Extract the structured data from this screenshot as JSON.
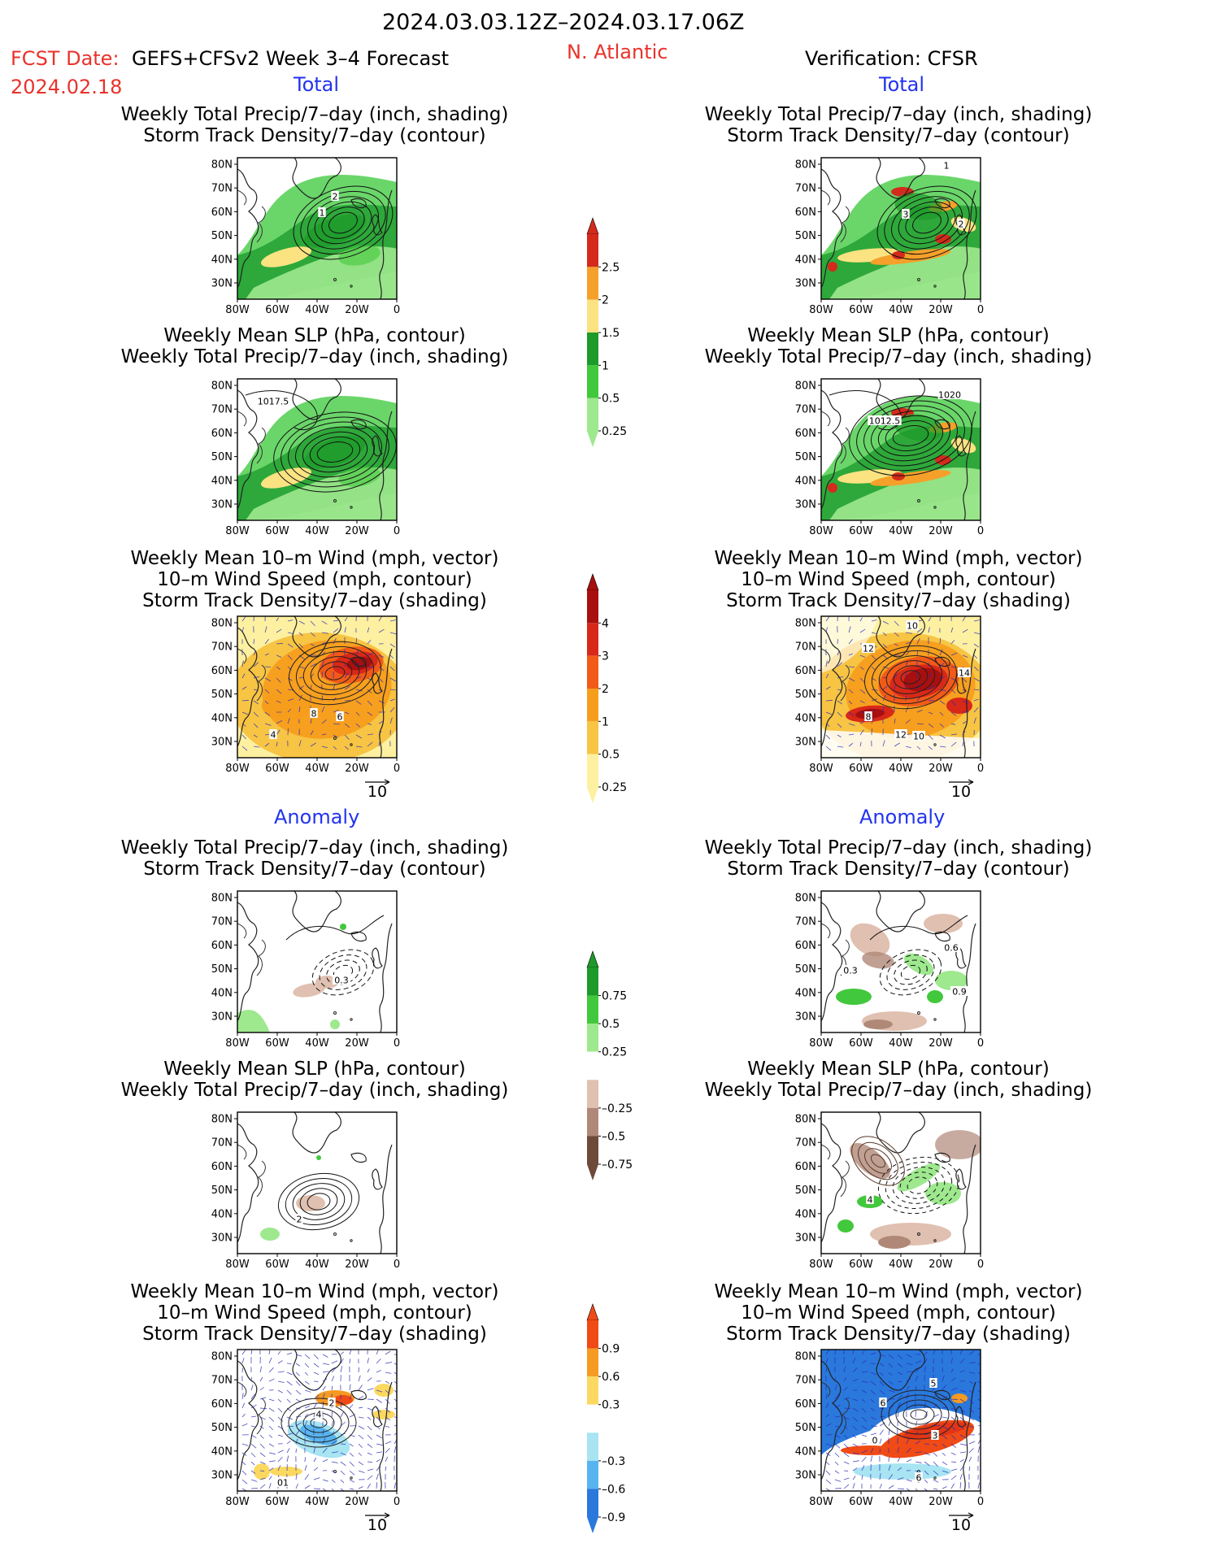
{
  "header": {
    "period": "2024.03.03.12Z–2024.03.17.06Z",
    "fcst_label": "FCST Date:",
    "fcst_model": "GEFS+CFSv2 Week 3–4 Forecast",
    "fcst_date": "2024.02.18",
    "region": "N. Atlantic",
    "verification": "Verification: CFSR"
  },
  "sections": {
    "total": "Total",
    "anomaly": "Anomaly"
  },
  "titles": {
    "precip_track": [
      "Weekly Total Precip/7–day (inch, shading)",
      "Storm Track Density/7–day (contour)"
    ],
    "slp_precip": [
      "Weekly Mean SLP (hPa, contour)",
      "Weekly Total Precip/7–day (inch, shading)"
    ],
    "wind_track": [
      "Weekly Mean 10–m Wind (mph, vector)",
      "10–m Wind Speed (mph, contour)",
      "Storm Track Density/7–day (shading)"
    ]
  },
  "axes": {
    "lat_ticks": [
      "80N",
      "70N",
      "60N",
      "50N",
      "40N",
      "30N"
    ],
    "lon_ticks": [
      "80W",
      "60W",
      "40W",
      "20W",
      "0"
    ]
  },
  "vector_reference": "10",
  "colorbars": [
    {
      "id": "precip-total",
      "labels": [
        "2.5",
        "2",
        "1.5",
        "1",
        "0.5",
        "0.25"
      ],
      "colors": [
        "#d42a1c",
        "#f5a02a",
        "#fbe382",
        "#1d9a2a",
        "#42c83c",
        "#9ee88e"
      ]
    },
    {
      "id": "storm-total",
      "labels": [
        "4",
        "3",
        "2",
        "1",
        "0.5",
        "0.25"
      ],
      "colors": [
        "#a80f0f",
        "#d82818",
        "#f25a18",
        "#f79d1c",
        "#f7c444",
        "#fdf0a0"
      ]
    },
    {
      "id": "precip-anom",
      "labels": [
        "0.75",
        "0.5",
        "0.25",
        "–0.25",
        "–0.5",
        "–0.75"
      ],
      "colors": [
        "#1d9a2a",
        "#42c83c",
        "#9ee88e",
        "#ffffff",
        "#e0c0b0",
        "#b08878",
        "#6e4a38"
      ]
    },
    {
      "id": "storm-anom",
      "labels": [
        "0.9",
        "0.6",
        "0.3",
        "–0.3",
        "–0.6",
        "–0.9"
      ],
      "colors": [
        "#f04a16",
        "#f59a22",
        "#fbd860",
        "#ffffff",
        "#a8e4f2",
        "#58b4ee",
        "#2a78dc"
      ]
    }
  ],
  "panel_labels": {
    "f1": [
      "2",
      "1"
    ],
    "v1": [
      "1",
      "3",
      "2"
    ],
    "f2": [
      "1017.5"
    ],
    "v2": [
      "1012.5",
      "1020"
    ],
    "f3": [
      "8",
      "6",
      "4"
    ],
    "v3": [
      "10",
      "12",
      "14",
      "8",
      "12",
      "10"
    ],
    "f4": [
      "0.3"
    ],
    "v4": [
      "0.6",
      "0.3",
      "0.9"
    ],
    "f5": [
      "2"
    ],
    "v5": [
      "4"
    ],
    "f6": [
      "2",
      "4",
      "01"
    ],
    "v6": [
      "5",
      "6",
      "0",
      "3",
      "6"
    ]
  }
}
